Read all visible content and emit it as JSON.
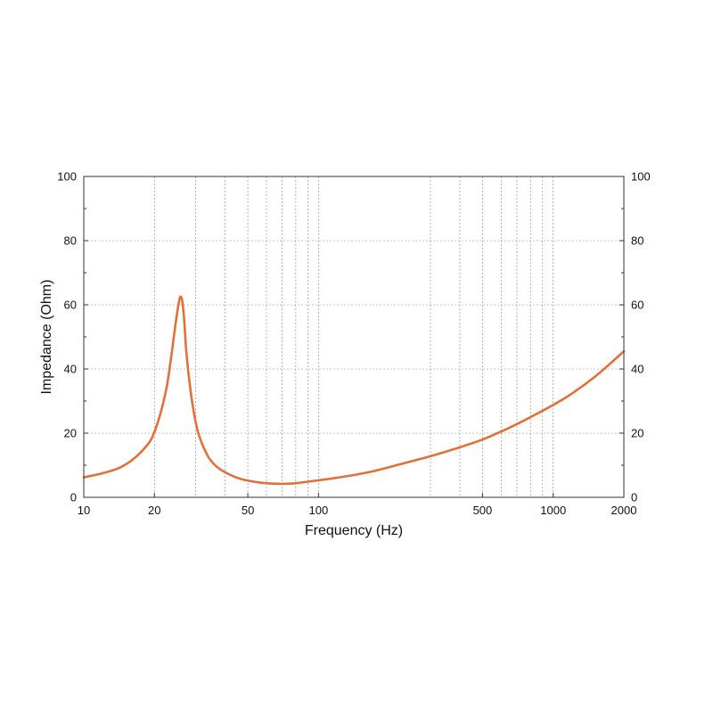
{
  "chart_data": {
    "type": "line",
    "xlabel": "Frequency (Hz)",
    "ylabel": "Impedance (Ohm)",
    "xscale": "log",
    "xlim": [
      10,
      2000
    ],
    "ylim": [
      0,
      100
    ],
    "x_ticks": [
      10,
      20,
      50,
      100,
      500,
      1000,
      2000
    ],
    "x_tick_labels": [
      "10",
      "20",
      "50",
      "100",
      "500",
      "1000",
      "2000"
    ],
    "y_ticks": [
      0,
      20,
      40,
      60,
      80,
      100
    ],
    "y_tick_labels": [
      "0",
      "20",
      "40",
      "60",
      "80",
      "100"
    ],
    "right_y_tick_labels": [
      "0",
      "20",
      "40",
      "60",
      "80",
      "100"
    ],
    "x_grid_lines": [
      20,
      30,
      40,
      50,
      60,
      70,
      80,
      90,
      100,
      300,
      400,
      500,
      600,
      700,
      800,
      900,
      1000
    ],
    "grid": true,
    "series": [
      {
        "color": "#e2703a",
        "x": [
          10,
          12,
          14,
          16,
          18,
          19.5,
          21,
          22.5,
          23.5,
          24.5,
          25.3,
          25.8,
          26.3,
          26.8,
          27.3,
          28.2,
          29.2,
          30.5,
          32,
          34,
          36,
          38,
          41,
          45,
          50,
          55,
          60,
          70,
          80,
          100,
          130,
          170,
          220,
          300,
          400,
          500,
          600,
          700,
          800,
          1000,
          1200,
          1500,
          1800,
          2000
        ],
        "y": [
          6.2,
          7.5,
          9,
          11.5,
          15,
          18.5,
          25,
          34,
          43,
          53,
          60,
          62.5,
          61,
          55,
          46,
          36,
          28,
          21,
          16.5,
          12.5,
          10.2,
          8.8,
          7.4,
          6.1,
          5.2,
          4.7,
          4.4,
          4.2,
          4.4,
          5.3,
          6.5,
          8.1,
          10.2,
          12.8,
          15.6,
          18,
          20.5,
          22.8,
          25,
          28.8,
          32.3,
          37.5,
          42.5,
          45.5
        ]
      }
    ]
  }
}
